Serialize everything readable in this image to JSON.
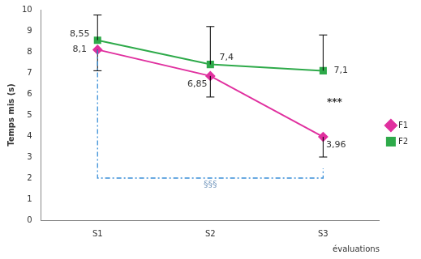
{
  "chart_data": {
    "type": "line",
    "y_label": "Temps mis (s)",
    "x_label": "évaluations",
    "categories": [
      "S1",
      "S2",
      "S3"
    ],
    "series": [
      {
        "name": "F1",
        "color": "#e0309f",
        "marker": "diamond",
        "values": [
          8.1,
          6.85,
          3.96
        ],
        "value_labels": [
          "8,1",
          "6,85",
          "3,96"
        ],
        "error_minus": [
          1.0,
          1.0,
          0.96
        ]
      },
      {
        "name": "F2",
        "color": "#2eaa4a",
        "marker": "square",
        "values": [
          8.55,
          7.4,
          7.1
        ],
        "value_labels": [
          "8,55",
          "7,4",
          "7,1"
        ],
        "error_plus": [
          1.2,
          1.8,
          1.7
        ]
      }
    ],
    "ylim": [
      0,
      10
    ],
    "yticks": [
      0,
      1,
      2,
      3,
      4,
      5,
      6,
      7,
      8,
      9,
      10
    ],
    "grid": false,
    "legend": "right",
    "data_labels": true,
    "annotations": [
      {
        "text": "***",
        "x": "S3",
        "y": 5.6
      },
      {
        "text": "§§§",
        "from": "S1",
        "to": "S3",
        "y": 2
      }
    ]
  }
}
